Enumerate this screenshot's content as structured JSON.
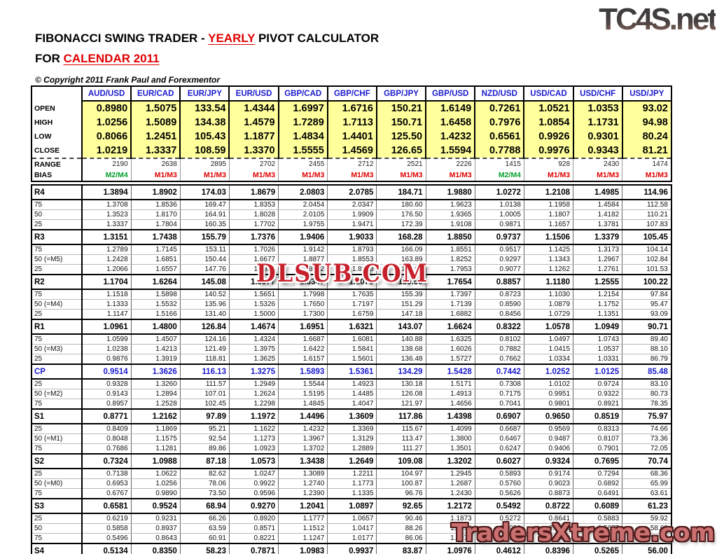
{
  "branding": {
    "site_logo": "TC4S.net",
    "footer_logo": "TradersXtreme.com",
    "watermark": "DLSUB.COM"
  },
  "header": {
    "title_prefix": "FIBONACCI SWING TRADER - ",
    "title_highlight": "YEARLY",
    "title_suffix": " PIVOT CALCULATOR",
    "subtitle_prefix": "FOR ",
    "subtitle_highlight": "CALENDAR 2011",
    "copyright": "© Copyright 2011 Frank Paul and Forexmentor"
  },
  "colors": {
    "ohlc_background": "#ffff9c",
    "pair_header_blue": "#1a1acd",
    "cp_row_blue": "#1a1acd",
    "bias_red": "#e00000",
    "bias_green": "#00a02a",
    "watermark_red": "#c6202b",
    "footer_logo_salmon": "#ca7070",
    "title_red": "#e00000"
  },
  "table": {
    "pairs": [
      "AUD/USD",
      "EUR/CAD",
      "EUR/JPY",
      "EUR/USD",
      "GBP/CAD",
      "GBP/CHF",
      "GBP/JPY",
      "GBP/USD",
      "NZD/USD",
      "USD/CAD",
      "USD/CHF",
      "USD/JPY"
    ],
    "bias_colors": [
      "green",
      "red",
      "red",
      "red",
      "red",
      "red",
      "red",
      "red",
      "green",
      "red",
      "red",
      "red"
    ],
    "rows": [
      {
        "label": "OPEN",
        "type": "ohlc",
        "values": [
          "0.8980",
          "1.5075",
          "133.54",
          "1.4344",
          "1.6997",
          "1.6716",
          "150.21",
          "1.6149",
          "0.7261",
          "1.0521",
          "1.0353",
          "93.02"
        ]
      },
      {
        "label": "HIGH",
        "type": "ohlc",
        "values": [
          "1.0256",
          "1.5089",
          "134.38",
          "1.4579",
          "1.7289",
          "1.7113",
          "150.71",
          "1.6458",
          "0.7976",
          "1.0854",
          "1.1731",
          "94.98"
        ]
      },
      {
        "label": "LOW",
        "type": "ohlc",
        "values": [
          "0.8066",
          "1.2451",
          "105.43",
          "1.1877",
          "1.4834",
          "1.4401",
          "125.50",
          "1.4232",
          "0.6561",
          "0.9926",
          "0.9301",
          "80.24"
        ]
      },
      {
        "label": "CLOSE",
        "type": "ohlc",
        "values": [
          "1.0219",
          "1.3337",
          "108.59",
          "1.3370",
          "1.5555",
          "1.4569",
          "126.65",
          "1.5594",
          "0.7788",
          "0.9976",
          "0.9343",
          "81.21"
        ]
      },
      {
        "label": "RANGE",
        "type": "range",
        "values": [
          "2190",
          "2638",
          "2895",
          "2702",
          "2455",
          "2712",
          "2521",
          "2226",
          "1415",
          "928",
          "2430",
          "1474"
        ]
      },
      {
        "label": "BIAS",
        "type": "bias",
        "values": [
          "M2/M4",
          "M1/M3",
          "M1/M3",
          "M1/M3",
          "M1/M3",
          "M1/M3",
          "M1/M3",
          "M1/M3",
          "M2/M4",
          "M1/M3",
          "M1/M3",
          "M1/M3"
        ]
      },
      {
        "label": "R4",
        "type": "pivot",
        "values": [
          "1.3894",
          "1.8902",
          "174.03",
          "1.8679",
          "2.0803",
          "2.0785",
          "184.71",
          "1.9880",
          "1.0272",
          "1.2108",
          "1.4985",
          "114.96"
        ]
      },
      {
        "label": "75",
        "type": "sub",
        "values": [
          "1.3708",
          "1.8536",
          "169.47",
          "1.8353",
          "2.0454",
          "2.0347",
          "180.60",
          "1.9623",
          "1.0138",
          "1.1958",
          "1.4584",
          "112.58"
        ]
      },
      {
        "label": "50",
        "type": "sub",
        "values": [
          "1.3523",
          "1.8170",
          "164.91",
          "1.8028",
          "2.0105",
          "1.9909",
          "176.50",
          "1.9365",
          "1.0005",
          "1.1807",
          "1.4182",
          "110.21"
        ]
      },
      {
        "label": "25",
        "type": "sub",
        "values": [
          "1.3337",
          "1.7804",
          "160.35",
          "1.7702",
          "1.9755",
          "1.9471",
          "172.39",
          "1.9108",
          "0.9871",
          "1.1657",
          "1.3781",
          "107.83"
        ]
      },
      {
        "label": "R3",
        "type": "pivot",
        "values": [
          "1.3151",
          "1.7438",
          "155.79",
          "1.7376",
          "1.9406",
          "1.9033",
          "168.28",
          "1.8850",
          "0.9737",
          "1.1506",
          "1.3379",
          "105.45"
        ]
      },
      {
        "label": "75",
        "type": "sub",
        "values": [
          "1.2789",
          "1.7145",
          "153.11",
          "1.7026",
          "1.9142",
          "1.8793",
          "166.09",
          "1.8551",
          "0.9517",
          "1.1425",
          "1.3173",
          "104.14"
        ]
      },
      {
        "label": "50 (=M5)",
        "type": "sub",
        "values": [
          "1.2428",
          "1.6851",
          "150.44",
          "1.6677",
          "1.8877",
          "1.8553",
          "163.89",
          "1.8252",
          "0.9297",
          "1.1343",
          "1.2967",
          "102.84"
        ]
      },
      {
        "label": "25",
        "type": "sub",
        "values": [
          "1.2066",
          "1.6557",
          "147.76",
          "1.6327",
          "1.8612",
          "1.8313",
          "161.69",
          "1.7953",
          "0.9077",
          "1.1262",
          "1.2761",
          "101.53"
        ]
      },
      {
        "label": "R2",
        "type": "pivot",
        "values": [
          "1.1704",
          "1.6264",
          "145.08",
          "1.5977",
          "1.8347",
          "1.8073",
          "159.50",
          "1.7654",
          "0.8857",
          "1.1180",
          "1.2555",
          "100.22"
        ]
      },
      {
        "label": "75",
        "type": "sub",
        "values": [
          "1.1518",
          "1.5898",
          "140.52",
          "1.5651",
          "1.7998",
          "1.7635",
          "155.39",
          "1.7397",
          "0.8723",
          "1.1030",
          "1.2154",
          "97.84"
        ]
      },
      {
        "label": "50 (=M4)",
        "type": "sub",
        "values": [
          "1.1333",
          "1.5532",
          "135.96",
          "1.5326",
          "1.7650",
          "1.7197",
          "151.29",
          "1.7139",
          "0.8590",
          "1.0879",
          "1.1752",
          "95.47"
        ]
      },
      {
        "label": "25",
        "type": "sub",
        "values": [
          "1.1147",
          "1.5166",
          "131.40",
          "1.5000",
          "1.7300",
          "1.6759",
          "147.18",
          "1.6882",
          "0.8456",
          "1.0729",
          "1.1351",
          "93.09"
        ]
      },
      {
        "label": "R1",
        "type": "pivot",
        "values": [
          "1.0961",
          "1.4800",
          "126.84",
          "1.4674",
          "1.6951",
          "1.6321",
          "143.07",
          "1.6624",
          "0.8322",
          "1.0578",
          "1.0949",
          "90.71"
        ]
      },
      {
        "label": "75",
        "type": "sub",
        "values": [
          "1.0599",
          "1.4507",
          "124.16",
          "1.4324",
          "1.6687",
          "1.6081",
          "140.88",
          "1.6325",
          "0.8102",
          "1.0497",
          "1.0743",
          "89.40"
        ]
      },
      {
        "label": "50 (=M3)",
        "type": "sub",
        "values": [
          "1.0238",
          "1.4213",
          "121.49",
          "1.3975",
          "1.6422",
          "1.5841",
          "138.68",
          "1.6026",
          "0.7882",
          "1.0415",
          "1.0537",
          "88.10"
        ]
      },
      {
        "label": "25",
        "type": "sub",
        "values": [
          "0.9876",
          "1.3919",
          "118.81",
          "1.3625",
          "1.6157",
          "1.5601",
          "136.48",
          "1.5727",
          "0.7662",
          "1.0334",
          "1.0331",
          "86.79"
        ]
      },
      {
        "label": "CP",
        "type": "cp",
        "values": [
          "0.9514",
          "1.3626",
          "116.13",
          "1.3275",
          "1.5893",
          "1.5361",
          "134.29",
          "1.5428",
          "0.7442",
          "1.0252",
          "1.0125",
          "85.48"
        ]
      },
      {
        "label": "25",
        "type": "sub",
        "values": [
          "0.9328",
          "1.3260",
          "111.57",
          "1.2949",
          "1.5544",
          "1.4923",
          "130.18",
          "1.5171",
          "0.7308",
          "1.0102",
          "0.9724",
          "83.10"
        ]
      },
      {
        "label": "50 (=M2)",
        "type": "sub",
        "values": [
          "0.9143",
          "1.2894",
          "107.01",
          "1.2624",
          "1.5195",
          "1.4485",
          "126.08",
          "1.4913",
          "0.7175",
          "0.9951",
          "0.9322",
          "80.73"
        ]
      },
      {
        "label": "75",
        "type": "sub",
        "values": [
          "0.8957",
          "1.2528",
          "102.45",
          "1.2298",
          "1.4845",
          "1.4047",
          "121.97",
          "1.4656",
          "0.7041",
          "0.9801",
          "0.8921",
          "78.35"
        ]
      },
      {
        "label": "S1",
        "type": "pivot",
        "values": [
          "0.8771",
          "1.2162",
          "97.89",
          "1.1972",
          "1.4496",
          "1.3609",
          "117.86",
          "1.4398",
          "0.6907",
          "0.9650",
          "0.8519",
          "75.97"
        ]
      },
      {
        "label": "25",
        "type": "sub",
        "values": [
          "0.8409",
          "1.1869",
          "95.21",
          "1.1622",
          "1.4232",
          "1.3369",
          "115.67",
          "1.4099",
          "0.6687",
          "0.9569",
          "0.8313",
          "74.66"
        ]
      },
      {
        "label": "50 (=M1)",
        "type": "sub",
        "values": [
          "0.8048",
          "1.1575",
          "92.54",
          "1.1273",
          "1.3967",
          "1.3129",
          "113.47",
          "1.3800",
          "0.6467",
          "0.9487",
          "0.8107",
          "73.36"
        ]
      },
      {
        "label": "75",
        "type": "sub",
        "values": [
          "0.7686",
          "1.1281",
          "89.86",
          "1.0923",
          "1.3702",
          "1.2889",
          "111.27",
          "1.3501",
          "0.6247",
          "0.9406",
          "0.7901",
          "72.05"
        ]
      },
      {
        "label": "S2",
        "type": "pivot",
        "values": [
          "0.7324",
          "1.0988",
          "87.18",
          "1.0573",
          "1.3438",
          "1.2649",
          "109.08",
          "1.3202",
          "0.6027",
          "0.9324",
          "0.7695",
          "70.74"
        ]
      },
      {
        "label": "25",
        "type": "sub",
        "values": [
          "0.7138",
          "1.0622",
          "82.62",
          "1.0247",
          "1.3089",
          "1.2211",
          "104.97",
          "1.2945",
          "0.5893",
          "0.9174",
          "0.7294",
          "68.36"
        ]
      },
      {
        "label": "50 (=M0)",
        "type": "sub",
        "values": [
          "0.6953",
          "1.0256",
          "78.06",
          "0.9922",
          "1.2740",
          "1.1773",
          "100.87",
          "1.2687",
          "0.5760",
          "0.9023",
          "0.6892",
          "65.99"
        ]
      },
      {
        "label": "75",
        "type": "sub",
        "values": [
          "0.6767",
          "0.9890",
          "73.50",
          "0.9596",
          "1.2390",
          "1.1335",
          "96.76",
          "1.2430",
          "0.5626",
          "0.8873",
          "0.6491",
          "63.61"
        ]
      },
      {
        "label": "S3",
        "type": "pivot",
        "values": [
          "0.6581",
          "0.9524",
          "68.94",
          "0.9270",
          "1.2041",
          "1.0897",
          "92.65",
          "1.2172",
          "0.5492",
          "0.8722",
          "0.6089",
          "61.23"
        ]
      },
      {
        "label": "25",
        "type": "sub",
        "values": [
          "0.6219",
          "0.9231",
          "66.26",
          "0.8920",
          "1.1777",
          "1.0657",
          "90.46",
          "1.1873",
          "0.5272",
          "0.8641",
          "0.5883",
          "59.92"
        ]
      },
      {
        "label": "50",
        "type": "sub",
        "values": [
          "0.5858",
          "0.8937",
          "63.59",
          "0.8571",
          "1.1512",
          "1.0417",
          "88.26",
          "1.1574",
          "0.5052",
          "0.8559",
          "0.5677",
          "58.62"
        ]
      },
      {
        "label": "75",
        "type": "sub",
        "values": [
          "0.5496",
          "0.8643",
          "60.91",
          "0.8221",
          "1.1247",
          "1.0177",
          "86.06",
          "1.1275",
          "0.4832",
          "0.8478",
          "0.5471",
          "57.31"
        ]
      },
      {
        "label": "S4",
        "type": "pivot",
        "values": [
          "0.5134",
          "0.8350",
          "58.23",
          "0.7871",
          "1.0983",
          "0.9937",
          "83.87",
          "1.0976",
          "0.4612",
          "0.8396",
          "0.5265",
          "56.00"
        ]
      }
    ]
  }
}
